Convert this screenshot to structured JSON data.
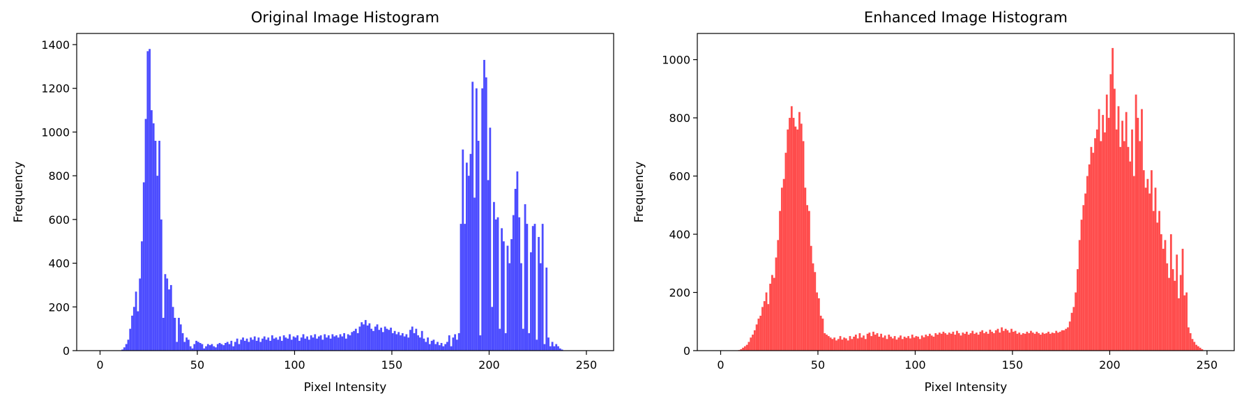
{
  "chart_data": [
    {
      "type": "histogram",
      "title": "Original Image Histogram",
      "xlabel": "Pixel Intensity",
      "ylabel": "Frequency",
      "color": "#4c4cff",
      "bins": [
        0,
        1,
        2,
        3,
        4,
        5,
        6,
        7,
        8,
        9,
        10,
        11,
        12,
        13,
        14,
        15,
        16,
        17,
        18,
        19,
        20,
        21,
        22,
        23,
        24,
        25,
        26,
        27,
        28,
        29,
        30,
        31,
        32,
        33,
        34,
        35,
        36,
        37,
        38,
        39,
        40,
        41,
        42,
        43,
        44,
        45,
        46,
        47,
        48,
        49,
        50,
        51,
        52,
        53,
        54,
        55,
        56,
        57,
        58,
        59,
        60,
        61,
        62,
        63,
        64,
        65,
        66,
        67,
        68,
        69,
        70,
        71,
        72,
        73,
        74,
        75,
        76,
        77,
        78,
        79,
        80,
        81,
        82,
        83,
        84,
        85,
        86,
        87,
        88,
        89,
        90,
        91,
        92,
        93,
        94,
        95,
        96,
        97,
        98,
        99,
        100,
        101,
        102,
        103,
        104,
        105,
        106,
        107,
        108,
        109,
        110,
        111,
        112,
        113,
        114,
        115,
        116,
        117,
        118,
        119,
        120,
        121,
        122,
        123,
        124,
        125,
        126,
        127,
        128,
        129,
        130,
        131,
        132,
        133,
        134,
        135,
        136,
        137,
        138,
        139,
        140,
        141,
        142,
        143,
        144,
        145,
        146,
        147,
        148,
        149,
        150,
        151,
        152,
        153,
        154,
        155,
        156,
        157,
        158,
        159,
        160,
        161,
        162,
        163,
        164,
        165,
        166,
        167,
        168,
        169,
        170,
        171,
        172,
        173,
        174,
        175,
        176,
        177,
        178,
        179,
        180,
        181,
        182,
        183,
        184,
        185,
        186,
        187,
        188,
        189,
        190,
        191,
        192,
        193,
        194,
        195,
        196,
        197,
        198,
        199,
        200,
        201,
        202,
        203,
        204,
        205,
        206,
        207,
        208,
        209,
        210,
        211,
        212,
        213,
        214,
        215,
        216,
        217,
        218,
        219,
        220,
        221,
        222,
        223,
        224,
        225,
        226,
        227,
        228,
        229,
        230,
        231,
        232,
        233,
        234,
        235,
        236,
        237,
        238,
        239,
        240,
        241,
        242,
        243,
        244,
        245,
        246,
        247,
        248,
        249,
        250,
        251,
        252,
        253,
        254,
        255,
        256
      ],
      "values": [
        0,
        0,
        0,
        0,
        0,
        0,
        0,
        0,
        0,
        0,
        0,
        5,
        15,
        30,
        50,
        100,
        160,
        200,
        270,
        180,
        330,
        500,
        770,
        1060,
        1370,
        1380,
        1100,
        1040,
        960,
        800,
        960,
        600,
        150,
        350,
        330,
        280,
        300,
        200,
        150,
        40,
        150,
        120,
        80,
        40,
        60,
        50,
        20,
        10,
        30,
        45,
        40,
        35,
        30,
        10,
        20,
        30,
        25,
        30,
        20,
        15,
        30,
        35,
        30,
        25,
        35,
        40,
        30,
        45,
        20,
        40,
        55,
        30,
        50,
        60,
        45,
        55,
        40,
        60,
        50,
        65,
        45,
        60,
        40,
        55,
        65,
        50,
        60,
        45,
        70,
        55,
        60,
        50,
        65,
        45,
        70,
        60,
        55,
        75,
        50,
        65,
        60,
        70,
        45,
        60,
        75,
        55,
        65,
        50,
        70,
        60,
        75,
        55,
        65,
        70,
        50,
        75,
        60,
        70,
        55,
        75,
        65,
        70,
        60,
        75,
        65,
        80,
        55,
        75,
        70,
        85,
        90,
        100,
        80,
        110,
        130,
        120,
        140,
        115,
        125,
        100,
        90,
        110,
        120,
        95,
        105,
        85,
        110,
        100,
        95,
        105,
        80,
        90,
        75,
        85,
        70,
        80,
        65,
        75,
        60,
        95,
        110,
        80,
        100,
        70,
        60,
        90,
        55,
        40,
        60,
        30,
        45,
        50,
        30,
        40,
        25,
        35,
        20,
        30,
        40,
        70,
        20,
        60,
        75,
        50,
        80,
        580,
        920,
        580,
        860,
        800,
        900,
        1230,
        700,
        1200,
        960,
        70,
        1200,
        1330,
        1250,
        780,
        1020,
        200,
        680,
        600,
        610,
        100,
        560,
        500,
        80,
        480,
        400,
        510,
        620,
        740,
        820,
        610,
        400,
        100,
        670,
        580,
        80,
        450,
        570,
        580,
        50,
        520,
        400,
        580,
        30,
        380,
        60,
        20,
        40,
        20,
        30,
        20,
        10,
        5,
        0,
        0,
        0,
        0,
        0,
        0,
        0,
        0,
        0,
        0,
        0,
        0,
        0,
        0,
        0,
        0,
        0,
        0
      ],
      "xlim": [
        -12,
        264
      ],
      "ylim": [
        0,
        1451
      ],
      "xticks": [
        0,
        50,
        100,
        150,
        200,
        250
      ],
      "yticks": [
        0,
        200,
        400,
        600,
        800,
        1000,
        1200,
        1400
      ]
    },
    {
      "type": "histogram",
      "title": "Enhanced Image Histogram",
      "xlabel": "Pixel Intensity",
      "ylabel": "Frequency",
      "color": "#ff4c4c",
      "bins": [
        0,
        1,
        2,
        3,
        4,
        5,
        6,
        7,
        8,
        9,
        10,
        11,
        12,
        13,
        14,
        15,
        16,
        17,
        18,
        19,
        20,
        21,
        22,
        23,
        24,
        25,
        26,
        27,
        28,
        29,
        30,
        31,
        32,
        33,
        34,
        35,
        36,
        37,
        38,
        39,
        40,
        41,
        42,
        43,
        44,
        45,
        46,
        47,
        48,
        49,
        50,
        51,
        52,
        53,
        54,
        55,
        56,
        57,
        58,
        59,
        60,
        61,
        62,
        63,
        64,
        65,
        66,
        67,
        68,
        69,
        70,
        71,
        72,
        73,
        74,
        75,
        76,
        77,
        78,
        79,
        80,
        81,
        82,
        83,
        84,
        85,
        86,
        87,
        88,
        89,
        90,
        91,
        92,
        93,
        94,
        95,
        96,
        97,
        98,
        99,
        100,
        101,
        102,
        103,
        104,
        105,
        106,
        107,
        108,
        109,
        110,
        111,
        112,
        113,
        114,
        115,
        116,
        117,
        118,
        119,
        120,
        121,
        122,
        123,
        124,
        125,
        126,
        127,
        128,
        129,
        130,
        131,
        132,
        133,
        134,
        135,
        136,
        137,
        138,
        139,
        140,
        141,
        142,
        143,
        144,
        145,
        146,
        147,
        148,
        149,
        150,
        151,
        152,
        153,
        154,
        155,
        156,
        157,
        158,
        159,
        160,
        161,
        162,
        163,
        164,
        165,
        166,
        167,
        168,
        169,
        170,
        171,
        172,
        173,
        174,
        175,
        176,
        177,
        178,
        179,
        180,
        181,
        182,
        183,
        184,
        185,
        186,
        187,
        188,
        189,
        190,
        191,
        192,
        193,
        194,
        195,
        196,
        197,
        198,
        199,
        200,
        201,
        202,
        203,
        204,
        205,
        206,
        207,
        208,
        209,
        210,
        211,
        212,
        213,
        214,
        215,
        216,
        217,
        218,
        219,
        220,
        221,
        222,
        223,
        224,
        225,
        226,
        227,
        228,
        229,
        230,
        231,
        232,
        233,
        234,
        235,
        236,
        237,
        238,
        239,
        240,
        241,
        242,
        243,
        244,
        245,
        246,
        247,
        248,
        249,
        250,
        251,
        252,
        253,
        254,
        255,
        256
      ],
      "values": [
        0,
        0,
        0,
        0,
        0,
        0,
        0,
        0,
        0,
        2,
        5,
        10,
        15,
        20,
        30,
        45,
        55,
        70,
        90,
        110,
        120,
        150,
        170,
        200,
        160,
        230,
        260,
        250,
        320,
        380,
        480,
        560,
        590,
        680,
        760,
        800,
        840,
        800,
        770,
        760,
        820,
        780,
        720,
        560,
        500,
        480,
        360,
        300,
        270,
        200,
        180,
        120,
        110,
        60,
        55,
        50,
        45,
        40,
        45,
        35,
        40,
        50,
        38,
        45,
        42,
        35,
        50,
        40,
        48,
        55,
        42,
        60,
        45,
        52,
        40,
        58,
        62,
        50,
        65,
        55,
        60,
        48,
        58,
        45,
        52,
        40,
        55,
        48,
        42,
        50,
        38,
        45,
        52,
        40,
        48,
        44,
        50,
        42,
        55,
        45,
        50,
        48,
        40,
        52,
        46,
        55,
        50,
        58,
        52,
        48,
        60,
        55,
        62,
        58,
        65,
        60,
        55,
        62,
        58,
        65,
        55,
        68,
        60,
        52,
        62,
        58,
        65,
        55,
        60,
        68,
        58,
        62,
        55,
        65,
        70,
        60,
        65,
        58,
        72,
        65,
        60,
        70,
        75,
        62,
        80,
        68,
        75,
        70,
        62,
        75,
        65,
        68,
        58,
        62,
        55,
        60,
        58,
        65,
        60,
        68,
        62,
        58,
        65,
        60,
        55,
        62,
        58,
        60,
        65,
        58,
        62,
        60,
        68,
        62,
        65,
        70,
        70,
        75,
        80,
        100,
        130,
        150,
        200,
        280,
        380,
        450,
        500,
        540,
        600,
        640,
        700,
        680,
        730,
        760,
        830,
        720,
        810,
        750,
        880,
        800,
        950,
        1040,
        900,
        760,
        840,
        700,
        790,
        720,
        820,
        700,
        650,
        760,
        600,
        880,
        800,
        720,
        830,
        620,
        560,
        590,
        540,
        620,
        480,
        560,
        440,
        480,
        400,
        350,
        380,
        300,
        250,
        400,
        280,
        240,
        330,
        180,
        260,
        350,
        190,
        200,
        80,
        60,
        40,
        30,
        20,
        15,
        10,
        5,
        0,
        0,
        0,
        0,
        0,
        0,
        0,
        0
      ],
      "xlim": [
        -12,
        264
      ],
      "ylim": [
        0,
        1090
      ],
      "xticks": [
        0,
        50,
        100,
        150,
        200,
        250
      ],
      "yticks": [
        0,
        200,
        400,
        600,
        800,
        1000
      ]
    }
  ]
}
